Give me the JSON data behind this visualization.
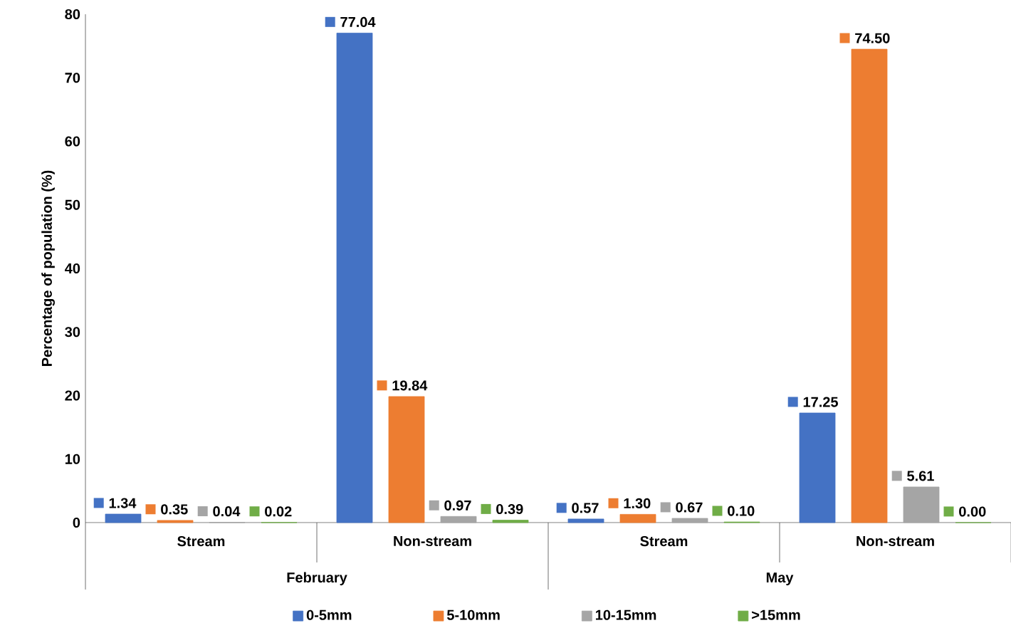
{
  "chart_data": {
    "type": "bar",
    "categories": [
      "Stream",
      "Non-stream",
      "Stream",
      "Non-stream"
    ],
    "annotations": [
      "February",
      "May"
    ],
    "ylabel": "Percentage of  population (%)",
    "series": [
      {
        "name": "0-5mm",
        "color": "#4472c4",
        "values": [
          1.34,
          77.04,
          0.57,
          17.25
        ],
        "value_labels": [
          "1.34",
          "77.04",
          "0.57",
          "17.25"
        ]
      },
      {
        "name": "5-10mm",
        "color": "#ed7d31",
        "values": [
          0.35,
          19.84,
          1.3,
          74.5
        ],
        "value_labels": [
          "0.35",
          "19.84",
          "1.30",
          "74.50"
        ]
      },
      {
        "name": "10-15mm",
        "color": "#a5a5a5",
        "values": [
          0.04,
          0.97,
          0.67,
          5.61
        ],
        "value_labels": [
          "0.04",
          "0.97",
          "0.67",
          "5.61"
        ]
      },
      {
        "name": ">15mm",
        "color": "#70ad47",
        "values": [
          0.02,
          0.39,
          0.1,
          0.0
        ],
        "value_labels": [
          "0.02",
          "0.39",
          "0.10",
          "0.00"
        ]
      }
    ],
    "ylim": [
      0,
      80
    ],
    "yticks": [
      0,
      10,
      20,
      30,
      40,
      50,
      60,
      70,
      80
    ],
    "legend": "bottom",
    "grid": false
  }
}
